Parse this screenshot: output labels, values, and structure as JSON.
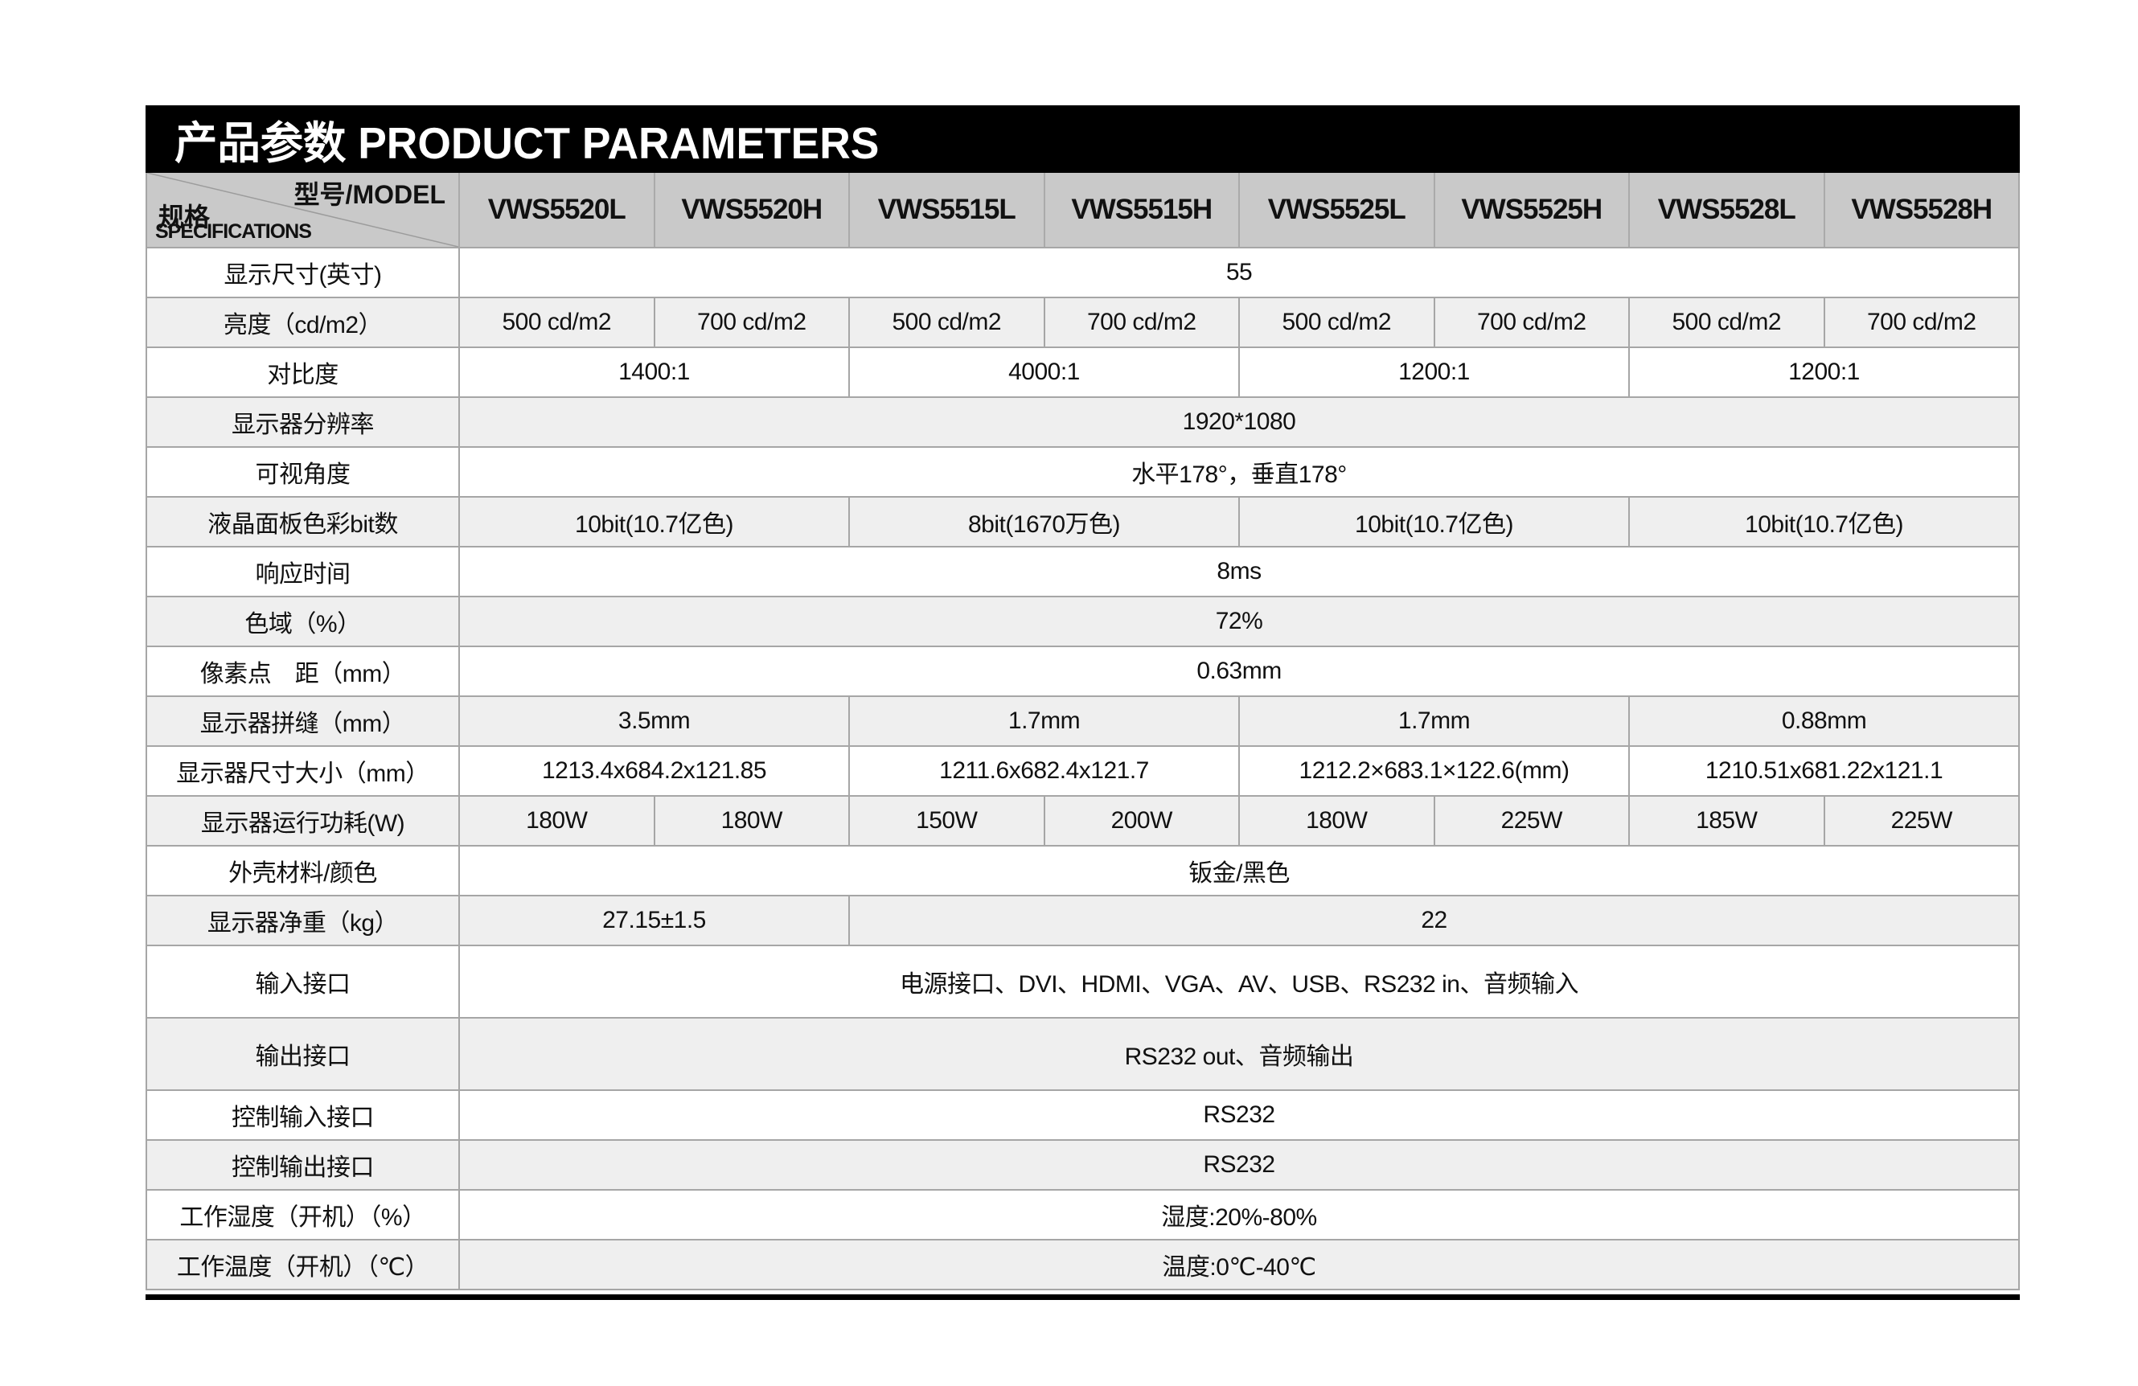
{
  "title": "产品参数 PRODUCT PARAMETERS",
  "colors": {
    "title_bar_bg": "#000000",
    "title_text": "#ffffff",
    "header_bg": "#c9c9c9",
    "row_bg": "#ffffff",
    "row_alt_bg": "#efefef",
    "border": "#a6a6a6",
    "bottom_rule": "#000000"
  },
  "table": {
    "corner": {
      "model_label": "型号/MODEL",
      "spec_label_zh": "规格",
      "spec_label_en": "SPECIFICATIONS"
    },
    "models": [
      "VWS5520L",
      "VWS5520H",
      "VWS5515L",
      "VWS5515H",
      "VWS5525L",
      "VWS5525H",
      "VWS5528L",
      "VWS5528H"
    ],
    "rows": [
      {
        "label": "显示尺寸(英寸)",
        "cells": [
          {
            "text": "55",
            "span": 8
          }
        ]
      },
      {
        "label": "亮度（cd/m2）",
        "cells": [
          {
            "text": "500 cd/m2",
            "span": 1
          },
          {
            "text": "700 cd/m2",
            "span": 1
          },
          {
            "text": "500 cd/m2",
            "span": 1
          },
          {
            "text": "700 cd/m2",
            "span": 1
          },
          {
            "text": "500 cd/m2",
            "span": 1
          },
          {
            "text": "700 cd/m2",
            "span": 1
          },
          {
            "text": "500 cd/m2",
            "span": 1
          },
          {
            "text": "700 cd/m2",
            "span": 1
          }
        ]
      },
      {
        "label": "对比度",
        "cells": [
          {
            "text": "1400:1",
            "span": 2
          },
          {
            "text": "4000:1",
            "span": 2
          },
          {
            "text": "1200:1",
            "span": 2
          },
          {
            "text": "1200:1",
            "span": 2
          }
        ]
      },
      {
        "label": "显示器分辨率",
        "cells": [
          {
            "text": "1920*1080",
            "span": 8
          }
        ]
      },
      {
        "label": "可视角度",
        "cells": [
          {
            "text": "水平178°，垂直178°",
            "span": 8
          }
        ]
      },
      {
        "label": "液晶面板色彩bit数",
        "cells": [
          {
            "text": "10bit(10.7亿色)",
            "span": 2
          },
          {
            "text": "8bit(1670万色)",
            "span": 2
          },
          {
            "text": "10bit(10.7亿色)",
            "span": 2
          },
          {
            "text": "10bit(10.7亿色)",
            "span": 2
          }
        ]
      },
      {
        "label": "响应时间",
        "cells": [
          {
            "text": "8ms",
            "span": 8
          }
        ]
      },
      {
        "label": "色域（%）",
        "cells": [
          {
            "text": "72%",
            "span": 8
          }
        ]
      },
      {
        "label": "像素点　距（mm）",
        "cells": [
          {
            "text": "0.63mm",
            "span": 8
          }
        ]
      },
      {
        "label": "显示器拼缝（mm）",
        "cells": [
          {
            "text": "3.5mm",
            "span": 2
          },
          {
            "text": "1.7mm",
            "span": 2
          },
          {
            "text": "1.7mm",
            "span": 2
          },
          {
            "text": "0.88mm",
            "span": 2
          }
        ]
      },
      {
        "label": "显示器尺寸大小（mm）",
        "cells": [
          {
            "text": "1213.4x684.2x121.85",
            "span": 2
          },
          {
            "text": "1211.6x682.4x121.7",
            "span": 2
          },
          {
            "text": "1212.2×683.1×122.6(mm)",
            "span": 2
          },
          {
            "text": "1210.51x681.22x121.1",
            "span": 2
          }
        ]
      },
      {
        "label": "显示器运行功耗(W)",
        "cells": [
          {
            "text": "180W",
            "span": 1
          },
          {
            "text": "180W",
            "span": 1
          },
          {
            "text": "150W",
            "span": 1
          },
          {
            "text": "200W",
            "span": 1
          },
          {
            "text": "180W",
            "span": 1
          },
          {
            "text": "225W",
            "span": 1
          },
          {
            "text": "185W",
            "span": 1
          },
          {
            "text": "225W",
            "span": 1
          }
        ]
      },
      {
        "label": "外壳材料/颜色",
        "cells": [
          {
            "text": "钣金/黑色",
            "span": 8
          }
        ]
      },
      {
        "label": "显示器净重（kg）",
        "cells": [
          {
            "text": "27.15±1.5",
            "span": 2
          },
          {
            "text": "22",
            "span": 6
          }
        ]
      },
      {
        "label": "输入接口",
        "tall": true,
        "cells": [
          {
            "text": "电源接口、DVI、HDMI、VGA、AV、USB、RS232 in、音频输入",
            "span": 8
          }
        ]
      },
      {
        "label": "输出接口",
        "tall": true,
        "cells": [
          {
            "text": "RS232 out、音频输出",
            "span": 8
          }
        ]
      },
      {
        "label": "控制输入接口",
        "cells": [
          {
            "text": "RS232",
            "span": 8
          }
        ]
      },
      {
        "label": "控制输出接口",
        "cells": [
          {
            "text": "RS232",
            "span": 8
          }
        ]
      },
      {
        "label": "工作湿度（开机）（%）",
        "cells": [
          {
            "text": "湿度:20%-80%",
            "span": 8
          }
        ]
      },
      {
        "label": "工作温度（开机）（℃）",
        "cells": [
          {
            "text": "温度:0℃-40℃",
            "span": 8
          }
        ]
      }
    ]
  }
}
